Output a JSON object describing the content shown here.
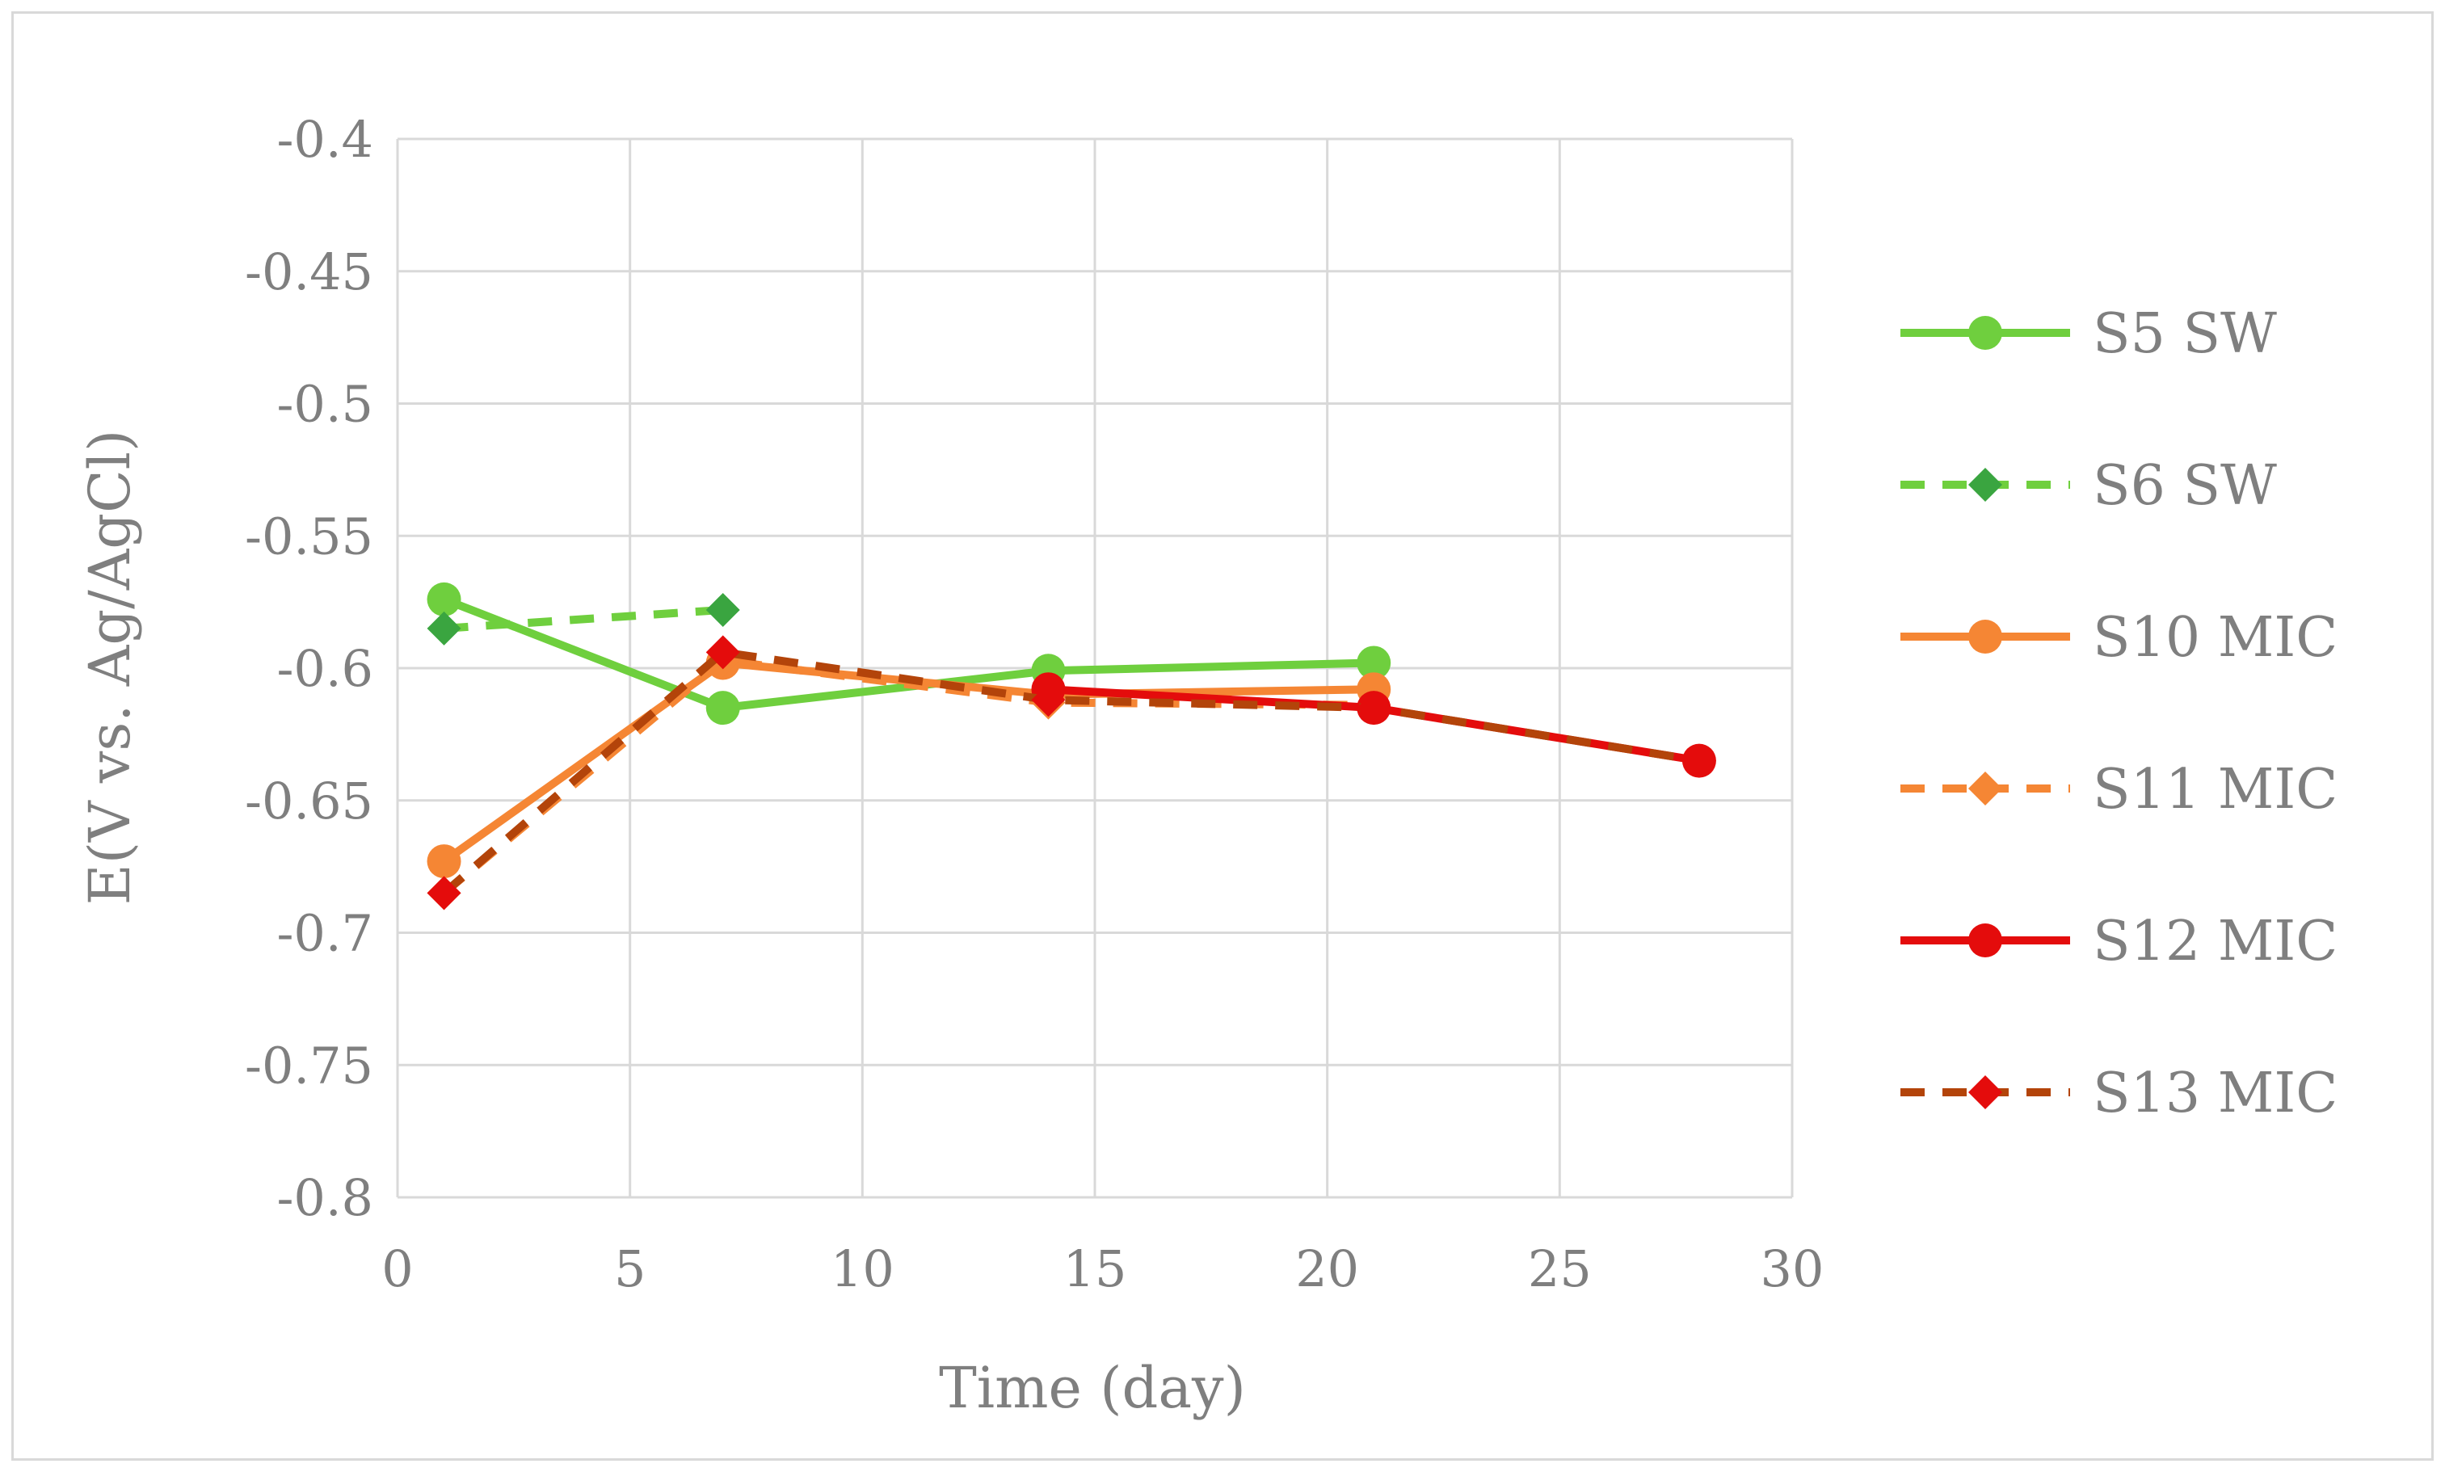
{
  "chart_data": {
    "type": "line",
    "xlabel": "Time (day)",
    "ylabel": "E(V vs. Ag/AgCl)",
    "xlim": [
      0,
      30
    ],
    "ylim": [
      -0.8,
      -0.4
    ],
    "x_ticks": [
      0,
      5,
      10,
      15,
      20,
      25,
      30
    ],
    "x_tick_labels": [
      "0",
      "5",
      "10",
      "15",
      "20",
      "25",
      "30"
    ],
    "y_ticks": [
      -0.4,
      -0.45,
      -0.5,
      -0.55,
      -0.6,
      -0.65,
      -0.7,
      -0.75,
      -0.8
    ],
    "y_tick_labels": [
      "-0.4",
      "-0.45",
      "-0.5",
      "-0.55",
      "-0.6",
      "-0.65",
      "-0.7",
      "-0.75",
      "-0.8"
    ],
    "grid": true,
    "legend_position": "right",
    "series": [
      {
        "name": "S5 SW",
        "color": "#6fcf3e",
        "marker_color": "#6fcf3e",
        "dash": "solid",
        "marker": "circle",
        "points": [
          [
            1,
            -0.574
          ],
          [
            7,
            -0.615
          ],
          [
            14,
            -0.601
          ],
          [
            21,
            -0.598
          ]
        ]
      },
      {
        "name": "S6 SW",
        "color": "#6fcf3e",
        "marker_color": "#3aa540",
        "dash": "dashed",
        "marker": "diamond",
        "points": [
          [
            1,
            -0.585
          ],
          [
            7,
            -0.578
          ]
        ]
      },
      {
        "name": "S10 MIC",
        "color": "#f58634",
        "marker_color": "#f58634",
        "dash": "solid",
        "marker": "circle",
        "points": [
          [
            1,
            -0.673
          ],
          [
            7,
            -0.598
          ],
          [
            14,
            -0.61
          ],
          [
            21,
            -0.608
          ]
        ]
      },
      {
        "name": "S11 MIC",
        "color": "#f58634",
        "marker_color": "#f58634",
        "dash": "dashed",
        "marker": "diamond",
        "points": [
          [
            1,
            -0.685
          ],
          [
            7,
            -0.597
          ],
          [
            14,
            -0.613
          ],
          [
            21,
            -0.614
          ]
        ]
      },
      {
        "name": "S12 MIC",
        "color": "#e40c0c",
        "marker_color": "#e40c0c",
        "dash": "solid",
        "marker": "circle",
        "points": [
          [
            14,
            -0.608
          ],
          [
            21,
            -0.615
          ],
          [
            28,
            -0.635
          ]
        ]
      },
      {
        "name": "S13 MIC",
        "color": "#b3440a",
        "marker_color": "#e40c0c",
        "dash": "dashed",
        "marker": "diamond",
        "points": [
          [
            1,
            -0.685
          ],
          [
            7,
            -0.594
          ],
          [
            14,
            -0.612
          ],
          [
            21,
            -0.615
          ],
          [
            28,
            -0.635
          ]
        ]
      }
    ]
  }
}
